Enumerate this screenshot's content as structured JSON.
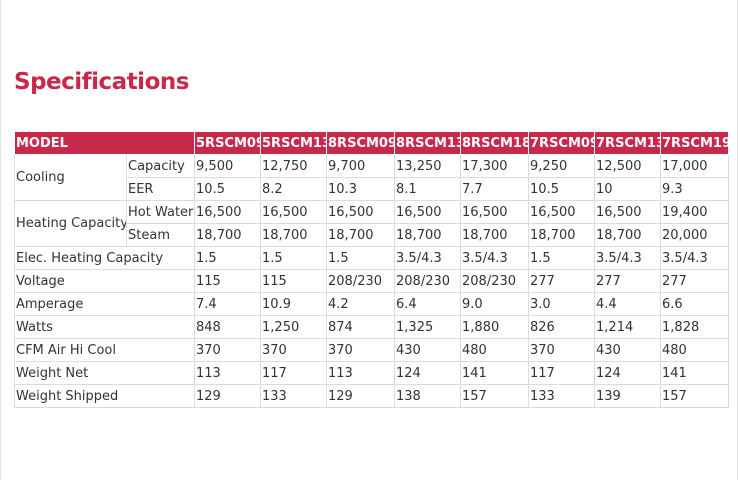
{
  "title": "Specifications",
  "table": {
    "header": [
      "MODEL",
      "5RSCM09",
      "5RSCM13",
      "8RSCM09",
      "8RSCM13",
      "8RSCM18",
      "7RSCM09",
      "7RSCM13",
      "7RSCM19"
    ],
    "rows": [
      {
        "group": "Cooling",
        "sub": "Capacity",
        "values": [
          "9,500",
          "12,750",
          "9,700",
          "13,250",
          "17,300",
          "9,250",
          "12,500",
          "17,000"
        ]
      },
      {
        "group": "",
        "sub": "EER",
        "values": [
          "10.5",
          "8.2",
          "10.3",
          "8.1",
          "7.7",
          "10.5",
          "10",
          "9.3"
        ]
      },
      {
        "group": "Heating Capacity",
        "sub": "Hot Water",
        "values": [
          "16,500",
          "16,500",
          "16,500",
          "16,500",
          "16,500",
          "16,500",
          "16,500",
          "19,400"
        ]
      },
      {
        "group": "",
        "sub": "Steam",
        "values": [
          "18,700",
          "18,700",
          "18,700",
          "18,700",
          "18,700",
          "18,700",
          "18,700",
          "20,000"
        ]
      },
      {
        "label": "Elec. Heating Capacity",
        "values": [
          "1.5",
          "1.5",
          "1.5",
          "3.5/4.3",
          "3.5/4.3",
          "1.5",
          "3.5/4.3",
          "3.5/4.3"
        ]
      },
      {
        "label": "Voltage",
        "values": [
          "115",
          "115",
          "208/230",
          "208/230",
          "208/230",
          "277",
          "277",
          "277"
        ]
      },
      {
        "label": "Amperage",
        "values": [
          "7.4",
          "10.9",
          "4.2",
          "6.4",
          "9.0",
          "3.0",
          "4.4",
          "6.6"
        ]
      },
      {
        "label": "Watts",
        "values": [
          "848",
          "1,250",
          "874",
          "1,325",
          "1,880",
          "826",
          "1,214",
          "1,828"
        ]
      },
      {
        "label": "CFM Air Hi Cool",
        "values": [
          "370",
          "370",
          "370",
          "430",
          "480",
          "370",
          "430",
          "480"
        ]
      },
      {
        "label": "Weight Net",
        "values": [
          "113",
          "117",
          "113",
          "124",
          "141",
          "117",
          "124",
          "141"
        ]
      },
      {
        "label": "Weight Shipped",
        "values": [
          "129",
          "133",
          "129",
          "138",
          "157",
          "133",
          "139",
          "157"
        ]
      }
    ]
  },
  "colors": {
    "accent": "#c8294a",
    "border": "#dcdcdc"
  }
}
